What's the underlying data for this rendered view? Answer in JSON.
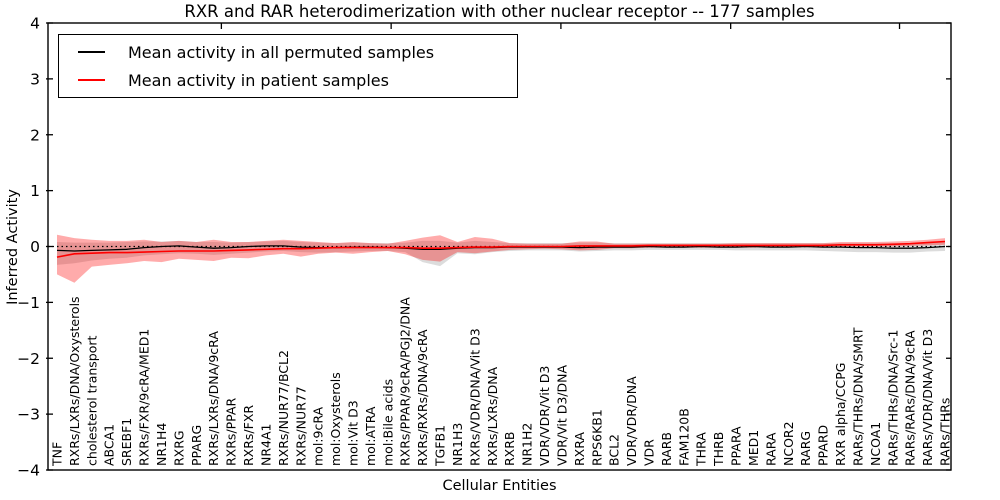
{
  "title": "RXR and RAR heterodimerization with other nuclear receptor -- 177 samples",
  "axes": {
    "xlabel": "Cellular Entities",
    "ylabel": "Inferred Activity",
    "yticklabels": [
      "4",
      "3",
      "2",
      "1",
      "0",
      "−1",
      "−2",
      "−3",
      "−4"
    ],
    "ylim": [
      -4,
      4
    ]
  },
  "legend": {
    "entries": [
      {
        "label": "Mean activity in all permuted samples",
        "color": "#000000"
      },
      {
        "label": "Mean activity in patient samples",
        "color": "#ff0000"
      }
    ]
  },
  "colors": {
    "frame": "#000000",
    "zero_line": "#000000",
    "permuted_line": "#000000",
    "patient_line": "#ff0000",
    "permuted_band": "#dcdcdc",
    "patient_band": "#ff0000"
  },
  "chart_data": {
    "type": "line",
    "title": "RXR and RAR heterodimerization with other nuclear receptor -- 177 samples",
    "xlabel": "Cellular Entities",
    "ylabel": "Inferred Activity",
    "ylim": [
      -4,
      4
    ],
    "yticks": [
      4,
      3,
      2,
      1,
      0,
      -1,
      -2,
      -3,
      -4
    ],
    "grid": false,
    "legend_position": "upper left",
    "zero_reference_line": true,
    "categories": [
      "TNF",
      "RXRs/LXRs/DNA/Oxysterols",
      "cholesterol transport",
      "ABCA1",
      "SREBF1",
      "RXRs/FXR/9cRA/MED1",
      "NR1H4",
      "RXRG",
      "PPARG",
      "RXRs/LXRs/DNA/9cRA",
      "RXRs/PPAR",
      "RXRs/FXR",
      "NR4A1",
      "RXRs/NUR77/BCL2",
      "RXRs/NUR77",
      "mol:9cRA",
      "mol:Oxysterols",
      "mol:Vit D3",
      "mol:ATRA",
      "mol:Bile acids",
      "RXRs/PPAR/9cRA/PGJ2/DNA",
      "RXRs/RXRs/DNA/9cRA",
      "TGFB1",
      "NR1H3",
      "RXRs/VDR/DNA/Vit D3",
      "RXRs/LXRs/DNA",
      "RXRB",
      "NR1H2",
      "VDR/VDR/Vit D3",
      "VDR/Vit D3/DNA",
      "RXRA",
      "RPS6KB1",
      "BCL2",
      "VDR/VDR/DNA",
      "VDR",
      "RARB",
      "FAM120B",
      "THRA",
      "THRB",
      "PPARA",
      "MED1",
      "RARA",
      "NCOR2",
      "RARG",
      "PPARD",
      "RXR alpha/CCPG",
      "RARs/THRs/DNA/SMRT",
      "NCOA1",
      "RARs/THRs/DNA/Src-1",
      "RARs/RARs/DNA/9cRA",
      "RARs/VDR/DNA/Vit D3",
      "RARs/THRs"
    ],
    "series": [
      {
        "name": "Mean activity in all permuted samples",
        "color": "#000000",
        "values": [
          -0.07,
          -0.08,
          -0.07,
          -0.06,
          -0.05,
          -0.02,
          0.0,
          0.01,
          -0.01,
          -0.03,
          -0.02,
          0.0,
          0.01,
          0.01,
          -0.01,
          -0.02,
          -0.02,
          -0.01,
          -0.01,
          -0.02,
          -0.03,
          -0.05,
          -0.05,
          -0.03,
          -0.02,
          -0.02,
          -0.01,
          -0.01,
          -0.01,
          -0.01,
          -0.02,
          -0.01,
          -0.01,
          -0.01,
          0.0,
          -0.01,
          -0.01,
          0.0,
          -0.01,
          -0.01,
          0.0,
          -0.01,
          -0.01,
          0.0,
          -0.01,
          -0.01,
          -0.02,
          -0.02,
          -0.03,
          -0.03,
          -0.02,
          0.0
        ]
      },
      {
        "name": "Mean activity in patient samples",
        "color": "#ff0000",
        "values": [
          -0.19,
          -0.13,
          -0.12,
          -0.11,
          -0.11,
          -0.1,
          -0.09,
          -0.08,
          -0.08,
          -0.08,
          -0.07,
          -0.06,
          -0.05,
          -0.04,
          -0.04,
          -0.03,
          -0.02,
          -0.02,
          -0.02,
          -0.02,
          -0.02,
          -0.03,
          -0.03,
          -0.02,
          -0.01,
          -0.01,
          0.0,
          0.0,
          0.0,
          0.0,
          0.01,
          0.01,
          0.01,
          0.01,
          0.02,
          0.02,
          0.02,
          0.02,
          0.02,
          0.02,
          0.02,
          0.02,
          0.02,
          0.02,
          0.02,
          0.03,
          0.03,
          0.03,
          0.04,
          0.05,
          0.07,
          0.09
        ]
      }
    ],
    "bands": [
      {
        "name": "permuted samples range",
        "color": "#dcdcdc",
        "opacity": 1,
        "low": [
          -0.33,
          -0.3,
          -0.25,
          -0.22,
          -0.2,
          -0.16,
          -0.14,
          -0.12,
          -0.13,
          -0.15,
          -0.13,
          -0.11,
          -0.09,
          -0.08,
          -0.1,
          -0.11,
          -0.1,
          -0.09,
          -0.08,
          -0.08,
          -0.1,
          -0.28,
          -0.35,
          -0.12,
          -0.14,
          -0.1,
          -0.08,
          -0.07,
          -0.07,
          -0.07,
          -0.09,
          -0.08,
          -0.07,
          -0.07,
          -0.06,
          -0.06,
          -0.06,
          -0.06,
          -0.06,
          -0.07,
          -0.07,
          -0.07,
          -0.07,
          -0.07,
          -0.08,
          -0.09,
          -0.1,
          -0.1,
          -0.11,
          -0.11,
          -0.09,
          -0.08
        ],
        "high": [
          0.08,
          0.07,
          0.07,
          0.07,
          0.08,
          0.09,
          0.09,
          0.1,
          0.08,
          0.08,
          0.07,
          0.08,
          0.09,
          0.1,
          0.08,
          0.07,
          0.06,
          0.07,
          0.06,
          0.06,
          0.07,
          0.1,
          0.1,
          0.07,
          0.1,
          0.08,
          0.06,
          0.06,
          0.06,
          0.06,
          0.07,
          0.07,
          0.06,
          0.06,
          0.06,
          0.06,
          0.06,
          0.06,
          0.06,
          0.06,
          0.06,
          0.06,
          0.06,
          0.06,
          0.06,
          0.06,
          0.06,
          0.06,
          0.06,
          0.06,
          0.07,
          0.08
        ]
      },
      {
        "name": "patient samples range",
        "color": "#ff0000",
        "opacity": 0.33,
        "low": [
          -0.5,
          -0.65,
          -0.36,
          -0.33,
          -0.3,
          -0.26,
          -0.28,
          -0.22,
          -0.24,
          -0.26,
          -0.2,
          -0.21,
          -0.16,
          -0.13,
          -0.18,
          -0.13,
          -0.11,
          -0.13,
          -0.1,
          -0.08,
          -0.14,
          -0.24,
          -0.27,
          -0.1,
          -0.12,
          -0.09,
          -0.06,
          -0.05,
          -0.04,
          -0.05,
          -0.07,
          -0.06,
          -0.03,
          -0.03,
          -0.02,
          -0.02,
          -0.02,
          -0.02,
          -0.02,
          -0.02,
          -0.02,
          -0.01,
          -0.01,
          -0.01,
          -0.01,
          0.0,
          0.0,
          0.0,
          0.0,
          0.01,
          0.02,
          0.03
        ],
        "high": [
          0.21,
          0.15,
          0.12,
          0.1,
          0.1,
          0.12,
          0.08,
          0.1,
          0.08,
          0.12,
          0.08,
          0.08,
          0.1,
          0.12,
          0.1,
          0.08,
          0.06,
          0.08,
          0.06,
          0.05,
          0.1,
          0.16,
          0.2,
          0.08,
          0.17,
          0.14,
          0.06,
          0.05,
          0.05,
          0.05,
          0.09,
          0.09,
          0.05,
          0.05,
          0.05,
          0.05,
          0.05,
          0.05,
          0.05,
          0.06,
          0.06,
          0.06,
          0.06,
          0.06,
          0.06,
          0.08,
          0.08,
          0.08,
          0.09,
          0.1,
          0.12,
          0.15
        ]
      }
    ]
  }
}
